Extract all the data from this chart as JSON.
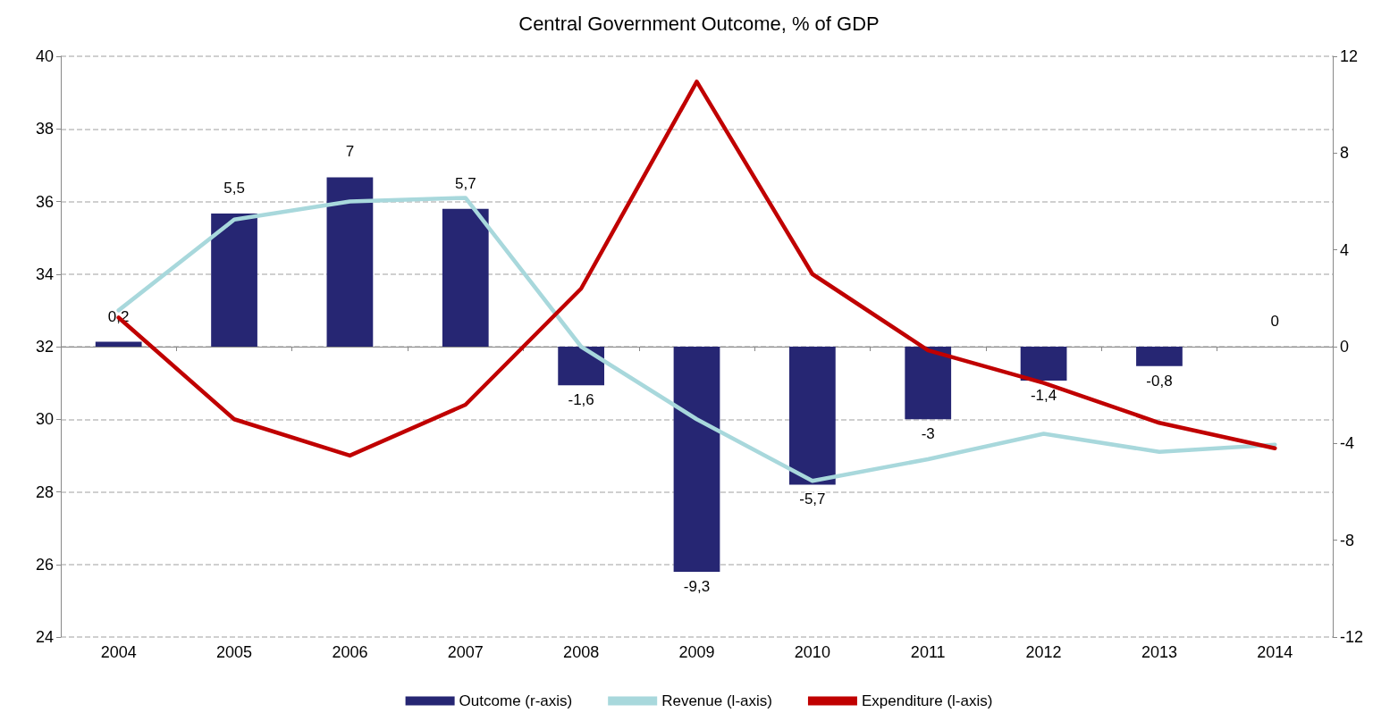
{
  "chart_data": {
    "type": "line",
    "title": "Central Government Outcome, % of GDP",
    "categories": [
      "2004",
      "2005",
      "2006",
      "2007",
      "2008",
      "2009",
      "2010",
      "2011",
      "2012",
      "2013",
      "2014"
    ],
    "series": [
      {
        "name": "Outcome (r-axis)",
        "type": "bar",
        "axis": "y2",
        "color": "#262673",
        "values": [
          0.2,
          5.5,
          7,
          5.7,
          -1.6,
          -9.3,
          -5.7,
          -3,
          -1.4,
          -0.8,
          0
        ],
        "value_labels": [
          "0,2",
          "5,5",
          "7",
          "5,7",
          "-1,6",
          "-9,3",
          "-5,7",
          "-3",
          "-1,4",
          "-0,8",
          "0"
        ]
      },
      {
        "name": "Revenue (l-axis)",
        "type": "line",
        "color": "#a8d8dc",
        "values": [
          33.0,
          35.5,
          36.0,
          36.1,
          32.0,
          30.0,
          28.3,
          28.9,
          29.6,
          29.1,
          29.3
        ]
      },
      {
        "name": "Expenditure (l-axis)",
        "type": "line",
        "color": "#c00000",
        "values": [
          32.8,
          30.0,
          29.0,
          30.4,
          33.6,
          39.3,
          34.0,
          31.9,
          31.0,
          29.9,
          29.2
        ]
      }
    ],
    "ylim": [
      24,
      40
    ],
    "yticks": [
      24,
      26,
      28,
      30,
      32,
      34,
      36,
      38,
      40
    ],
    "y2lim": [
      -12,
      12
    ],
    "y2ticks": [
      -12,
      -8,
      -4,
      0,
      4,
      8,
      12
    ],
    "grid": "y",
    "legend": "bottom",
    "marker": "none",
    "line_style": "solid"
  }
}
